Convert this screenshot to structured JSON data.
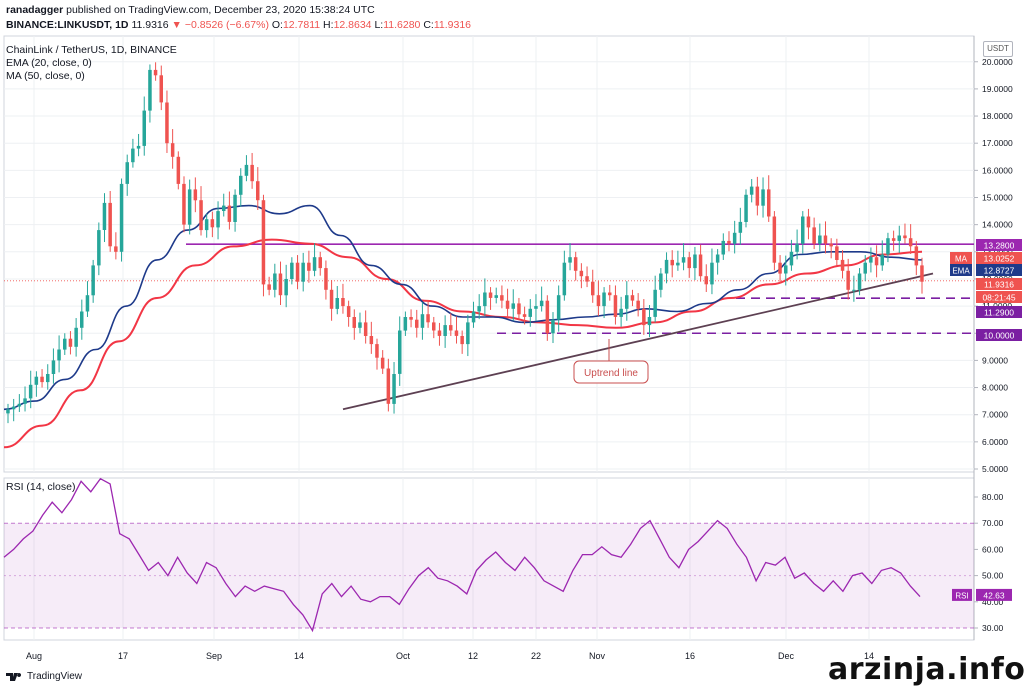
{
  "header": {
    "author": "ranadagger",
    "published": "published on TradingView.com, December 23, 2020 15:38:24 UTC",
    "symbol": "BINANCE:LINKUSDT, 1D",
    "last": "11.9316",
    "change": "−0.8526 (−6.67%)",
    "open": "12.7811",
    "high": "12.8634",
    "low": "11.6280",
    "close": "11.9316"
  },
  "legend": {
    "pair": "ChainLink / TetherUS, 1D, BINANCE",
    "ema": "EMA (20, close, 0)",
    "ma": "MA (50, close, 0)",
    "rsi": "RSI (14, close)"
  },
  "currency_button": "USDT",
  "annotation": "Uptrend line",
  "price_tags": [
    {
      "label": "",
      "value": "13.2800",
      "color": "#9c27b0"
    },
    {
      "label": "MA",
      "value": "13.0252",
      "color": "#ef5350"
    },
    {
      "label": "EMA",
      "value": "12.8727",
      "color": "#1e3a8a"
    },
    {
      "label": "",
      "value": "11.9316",
      "color": "#ef5350"
    },
    {
      "label": "",
      "value": "08:21:45",
      "color": "#ef5350"
    },
    {
      "label": "",
      "value": "11.2900",
      "color": "#7b1fa2"
    },
    {
      "label": "",
      "value": "10.0000",
      "color": "#7b1fa2"
    }
  ],
  "rsi_tag": {
    "label": "RSI",
    "value": "42.63"
  },
  "footer": {
    "brand": "TradingView",
    "watermark": "arzinja.info"
  },
  "colors": {
    "up": "#26a69a",
    "down": "#ef5350",
    "ema": "#1e3a8a",
    "ma": "#f23645",
    "resistance": "#9c27b0",
    "support": "#7b1fa2",
    "trendline": "#5d4052",
    "rsi": "#9c27b0"
  },
  "chart_data": [
    {
      "type": "candlestick",
      "title": "ChainLink / TetherUS, 1D, BINANCE",
      "ylim": [
        5,
        20.5
      ],
      "y_ticks": [
        "5.0000",
        "6.0000",
        "7.0000",
        "8.0000",
        "9.0000",
        "10.0000",
        "11.0000",
        "12.0000",
        "13.0000",
        "14.0000",
        "15.0000",
        "16.0000",
        "17.0000",
        "18.0000",
        "19.0000",
        "20.0000"
      ],
      "x_ticks": [
        "Aug",
        "17",
        "Sep",
        "14",
        "Oct",
        "12",
        "22",
        "Nov",
        "16",
        "Dec",
        "14"
      ],
      "grid": true,
      "closes": [
        7.2,
        7.3,
        7.4,
        7.6,
        8.1,
        8.4,
        8.2,
        8.5,
        9.0,
        9.4,
        9.8,
        9.5,
        10.2,
        10.8,
        11.4,
        12.5,
        13.8,
        14.8,
        13.2,
        13.0,
        15.5,
        16.3,
        16.8,
        16.9,
        18.2,
        19.7,
        19.5,
        18.5,
        17.0,
        16.5,
        15.5,
        14.0,
        15.3,
        14.9,
        13.8,
        14.2,
        13.9,
        14.5,
        14.7,
        14.1,
        15.1,
        15.8,
        16.2,
        15.6,
        14.9,
        11.8,
        11.6,
        12.2,
        11.4,
        12.0,
        12.6,
        11.9,
        12.6,
        12.3,
        12.8,
        12.4,
        11.6,
        10.9,
        11.3,
        11.0,
        10.6,
        10.2,
        10.4,
        9.9,
        9.6,
        9.1,
        8.7,
        7.4,
        8.5,
        10.1,
        10.6,
        10.5,
        10.2,
        10.7,
        10.4,
        10.1,
        9.9,
        10.3,
        10.1,
        9.9,
        9.6,
        10.4,
        10.8,
        11.0,
        11.5,
        11.3,
        11.4,
        11.2,
        10.9,
        11.1,
        10.7,
        10.6,
        10.9,
        11.0,
        11.2,
        10.0,
        10.5,
        11.4,
        12.6,
        12.8,
        12.3,
        12.1,
        11.9,
        11.4,
        11.0,
        11.5,
        11.4,
        10.6,
        10.9,
        11.4,
        11.2,
        10.9,
        10.3,
        10.6,
        11.6,
        12.2,
        12.7,
        12.5,
        12.6,
        12.8,
        12.4,
        12.9,
        12.1,
        11.8,
        12.6,
        12.9,
        13.4,
        13.3,
        13.7,
        14.1,
        15.1,
        15.4,
        14.7,
        15.3,
        14.3,
        12.6,
        12.2,
        12.5,
        13.0,
        13.3,
        14.3,
        13.9,
        13.3,
        13.6,
        13.3,
        13.2,
        12.7,
        12.3,
        11.6,
        11.6,
        12.2,
        12.6,
        12.8,
        12.5,
        12.9,
        13.5,
        13.4,
        13.6,
        13.5,
        13.2,
        12.5,
        11.9
      ],
      "ema20_approx": [
        7.2,
        7.5,
        8.3,
        9.4,
        11.0,
        12.7,
        13.8,
        14.6,
        14.7,
        14.4,
        14.7,
        13.6,
        12.5,
        11.8,
        11.0,
        10.6,
        10.6,
        10.4,
        10.5,
        10.6,
        10.7,
        10.9,
        10.8,
        11.1,
        11.6,
        12.2,
        12.9,
        13.0,
        13.0,
        12.8,
        12.7
      ],
      "ma50_approx": [
        5.8,
        6.6,
        7.9,
        9.7,
        11.3,
        12.5,
        13.2,
        13.45,
        13.3,
        12.8,
        12.0,
        11.2,
        10.8,
        10.6,
        10.4,
        10.3,
        10.2,
        10.4,
        10.8,
        11.3,
        11.8,
        12.2,
        12.5,
        12.9,
        13.0
      ],
      "levels": [
        13.28,
        11.29,
        10.0
      ],
      "trendline": {
        "from": [
          "Sep 21",
          7.2
        ],
        "to": [
          "Dec 23",
          12.2
        ]
      }
    },
    {
      "type": "line",
      "title": "RSI (14, close)",
      "ylim": [
        27,
        88
      ],
      "y_ticks": [
        "30.00",
        "40.00",
        "50.00",
        "60.00",
        "70.00",
        "80.00"
      ],
      "band": [
        30,
        70
      ],
      "series": [
        {
          "name": "RSI (14, close)",
          "values": [
            57,
            60,
            64,
            67,
            73,
            78,
            74,
            79,
            86,
            82,
            87,
            85,
            66,
            64,
            58,
            52,
            55,
            50,
            57,
            51,
            47,
            55,
            53,
            47,
            42,
            46,
            44,
            46,
            45,
            44,
            39,
            35,
            29,
            43,
            47,
            42,
            46,
            41,
            40,
            42,
            42,
            39,
            45,
            50,
            53,
            49,
            48,
            46,
            43,
            52,
            56,
            59,
            55,
            52,
            57,
            53,
            48,
            46,
            44,
            52,
            58,
            58,
            61,
            58,
            57,
            62,
            68,
            71,
            64,
            57,
            53,
            60,
            63,
            67,
            71,
            68,
            62,
            57,
            48,
            55,
            54,
            57,
            49,
            51,
            47,
            44,
            48,
            44,
            50,
            51,
            47,
            52,
            53,
            51,
            46,
            42
          ]
        }
      ]
    }
  ]
}
